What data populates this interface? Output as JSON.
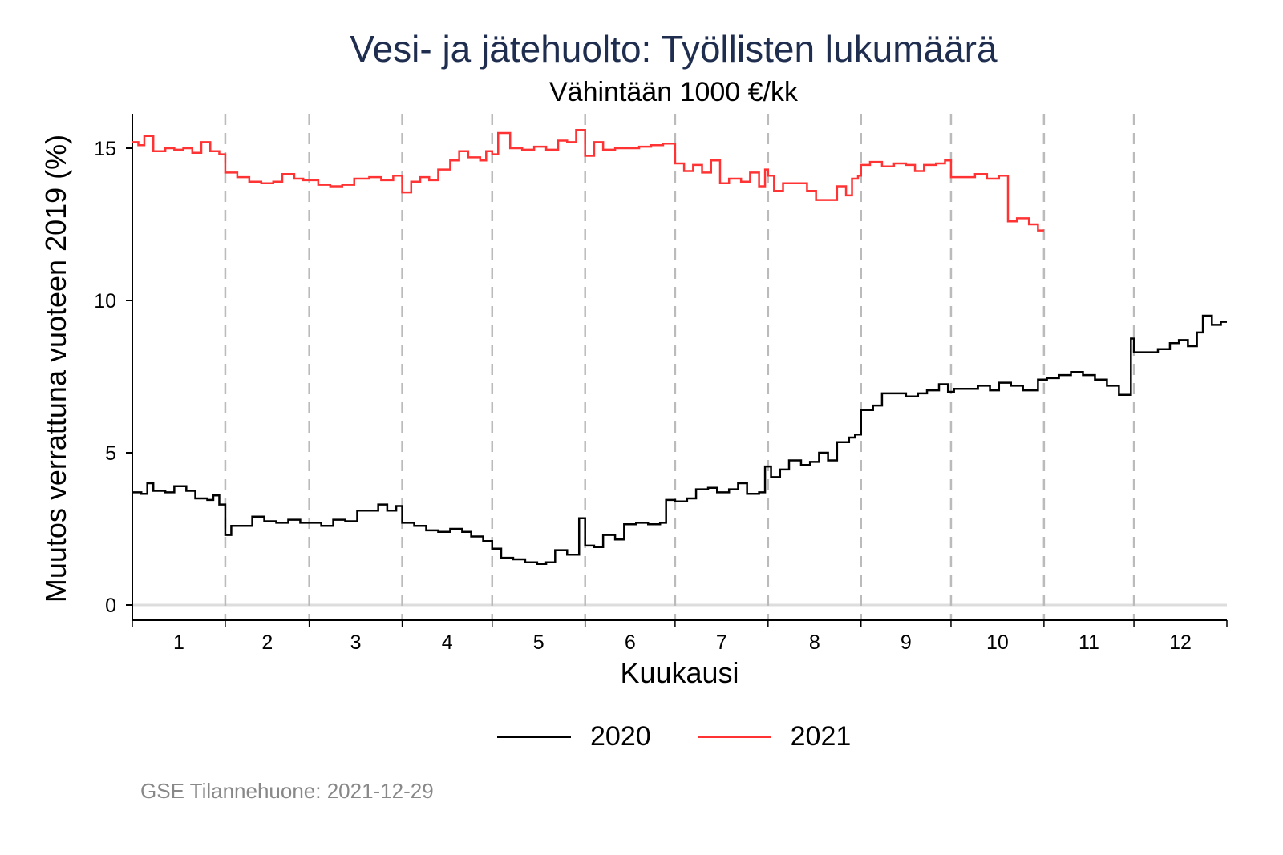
{
  "chart_data": {
    "type": "line",
    "title": "Vesi- ja jätehuolto: Työllisten lukumäärä",
    "subtitle": "Vähintään 1000 €/kk",
    "xlabel": "Kuukausi",
    "ylabel": "Muutos verrattuna vuoteen 2019 (%)",
    "x_unit": "day of year",
    "xlim": [
      1,
      365
    ],
    "ylim": [
      -0.5,
      16.2
    ],
    "yticks": [
      0,
      5,
      10,
      15
    ],
    "xtick_labels": [
      "1",
      "2",
      "3",
      "4",
      "5",
      "6",
      "7",
      "8",
      "9",
      "10",
      "11",
      "12"
    ],
    "month_start_days": [
      1,
      32,
      60,
      91,
      121,
      152,
      182,
      213,
      244,
      274,
      305,
      335
    ],
    "grid": "horizontal line at 0, dashed vertical month boundaries",
    "legend_position": "bottom",
    "series": [
      {
        "name": "2020",
        "color": "#000000",
        "x": [
          1,
          4,
          6,
          8,
          12,
          15,
          19,
          22,
          26,
          28,
          30,
          32,
          34,
          38,
          41,
          45,
          49,
          53,
          57,
          60,
          64,
          68,
          72,
          76,
          80,
          83,
          86,
          89,
          91,
          95,
          99,
          103,
          107,
          111,
          114,
          118,
          121,
          124,
          128,
          132,
          136,
          139,
          142,
          146,
          150,
          152,
          155,
          158,
          162,
          165,
          169,
          173,
          177,
          179,
          182,
          186,
          189,
          193,
          196,
          200,
          203,
          206,
          210,
          212,
          214,
          217,
          220,
          224,
          227,
          230,
          233,
          236,
          240,
          242,
          244,
          248,
          251,
          255,
          259,
          263,
          266,
          270,
          273,
          275,
          279,
          283,
          287,
          290,
          294,
          298,
          303,
          306,
          310,
          314,
          318,
          322,
          326,
          330,
          334,
          335,
          339,
          343,
          347,
          350,
          353,
          356,
          358,
          361,
          364,
          365
        ],
        "y": [
          3.7,
          3.65,
          4.0,
          3.75,
          3.7,
          3.9,
          3.75,
          3.5,
          3.45,
          3.6,
          3.3,
          2.3,
          2.6,
          2.6,
          2.9,
          2.75,
          2.7,
          2.8,
          2.7,
          2.7,
          2.6,
          2.8,
          2.75,
          3.1,
          3.1,
          3.3,
          3.1,
          3.25,
          2.7,
          2.6,
          2.45,
          2.4,
          2.5,
          2.4,
          2.25,
          2.1,
          1.85,
          1.55,
          1.5,
          1.4,
          1.35,
          1.4,
          1.8,
          1.65,
          2.85,
          1.95,
          1.9,
          2.3,
          2.15,
          2.65,
          2.7,
          2.65,
          2.7,
          3.45,
          3.4,
          3.5,
          3.8,
          3.85,
          3.7,
          3.8,
          4.0,
          3.65,
          3.7,
          4.55,
          4.2,
          4.45,
          4.75,
          4.6,
          4.7,
          5.0,
          4.75,
          5.35,
          5.5,
          5.6,
          6.4,
          6.55,
          6.95,
          6.95,
          6.85,
          6.95,
          7.05,
          7.25,
          7.0,
          7.1,
          7.1,
          7.2,
          7.05,
          7.3,
          7.2,
          7.05,
          7.4,
          7.45,
          7.55,
          7.65,
          7.55,
          7.4,
          7.2,
          6.9,
          8.75,
          8.3,
          8.3,
          8.4,
          8.6,
          8.7,
          8.5,
          8.95,
          9.5,
          9.2,
          9.3,
          9.3
        ]
      },
      {
        "name": "2021",
        "color": "#ff3333",
        "x": [
          1,
          3,
          5,
          8,
          12,
          15,
          18,
          21,
          24,
          27,
          30,
          32,
          36,
          40,
          44,
          48,
          51,
          55,
          58,
          60,
          63,
          67,
          71,
          75,
          80,
          84,
          88,
          91,
          94,
          97,
          100,
          103,
          107,
          110,
          113,
          117,
          119,
          121,
          123,
          127,
          131,
          135,
          139,
          143,
          146,
          149,
          152,
          155,
          158,
          162,
          166,
          170,
          174,
          178,
          182,
          185,
          188,
          191,
          194,
          197,
          200,
          204,
          207,
          210,
          212,
          213,
          215,
          218,
          222,
          226,
          229,
          233,
          236,
          239,
          241,
          243,
          244,
          247,
          251,
          255,
          259,
          262,
          265,
          269,
          272,
          274,
          278,
          282,
          286,
          290,
          293,
          296,
          300,
          303,
          304
        ],
        "y": [
          15.2,
          15.1,
          15.4,
          14.9,
          15.0,
          14.95,
          15.0,
          14.85,
          15.2,
          14.9,
          14.8,
          14.2,
          14.05,
          13.9,
          13.85,
          13.9,
          14.15,
          14.0,
          13.95,
          13.95,
          13.8,
          13.75,
          13.8,
          14.0,
          14.05,
          13.95,
          14.1,
          13.55,
          13.9,
          14.05,
          13.95,
          14.3,
          14.6,
          14.9,
          14.7,
          14.6,
          14.9,
          14.8,
          15.5,
          15.0,
          14.95,
          15.05,
          14.95,
          15.25,
          15.2,
          15.6,
          14.75,
          15.2,
          14.95,
          15.0,
          15.0,
          15.05,
          15.1,
          15.15,
          14.5,
          14.25,
          14.45,
          14.2,
          14.6,
          13.85,
          14.0,
          13.9,
          14.2,
          13.75,
          14.3,
          14.1,
          13.6,
          13.85,
          13.85,
          13.6,
          13.3,
          13.3,
          13.75,
          13.45,
          14.0,
          14.1,
          14.45,
          14.55,
          14.4,
          14.5,
          14.45,
          14.25,
          14.45,
          14.5,
          14.6,
          14.05,
          14.05,
          14.15,
          14.0,
          14.1,
          12.6,
          12.7,
          12.5,
          12.3,
          12.3
        ]
      }
    ]
  },
  "footer": {
    "source": "GSE Tilannehuone: 2021-12-29"
  }
}
